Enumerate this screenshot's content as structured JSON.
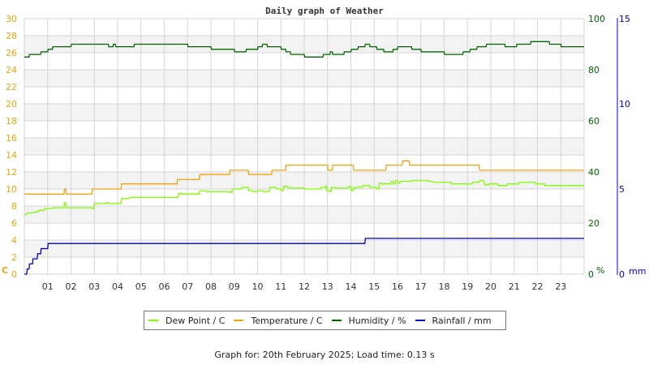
{
  "chart_data": {
    "type": "line",
    "title": "Daily graph of Weather",
    "xlabel": "",
    "x_ticks": [
      "01",
      "02",
      "03",
      "04",
      "05",
      "06",
      "07",
      "08",
      "09",
      "10",
      "11",
      "12",
      "13",
      "14",
      "15",
      "16",
      "17",
      "18",
      "19",
      "20",
      "21",
      "22",
      "23"
    ],
    "xlim": [
      0,
      24
    ],
    "grid": true,
    "legend_position": "bottom",
    "axes": {
      "left": {
        "label": "C",
        "ticks": [
          "0",
          "2",
          "4",
          "6",
          "8",
          "10",
          "12",
          "14",
          "16",
          "18",
          "20",
          "22",
          "24",
          "26",
          "28",
          "30"
        ],
        "range": [
          0,
          30
        ],
        "color": "#f0a30a"
      },
      "right_humidity": {
        "label": "%",
        "ticks": [
          "0",
          "20",
          "40",
          "60",
          "80",
          "100"
        ],
        "range": [
          0,
          100
        ],
        "color": "#006400"
      },
      "right_rain": {
        "label": "mm",
        "ticks": [
          "0",
          "5",
          "10",
          "15"
        ],
        "range": [
          0,
          15
        ],
        "color": "#0000cc"
      }
    },
    "series": [
      {
        "name": "Dew Point / C",
        "color": "#7fff00",
        "axis": "left",
        "points": [
          [
            0,
            7.0
          ],
          [
            0.1,
            7.0
          ],
          [
            0.12,
            7.2
          ],
          [
            0.4,
            7.2
          ],
          [
            0.42,
            7.3
          ],
          [
            0.6,
            7.3
          ],
          [
            0.62,
            7.5
          ],
          [
            0.85,
            7.5
          ],
          [
            0.87,
            7.7
          ],
          [
            1.2,
            7.7
          ],
          [
            1.22,
            7.8
          ],
          [
            1.7,
            7.8
          ],
          [
            1.72,
            8.4
          ],
          [
            1.78,
            8.4
          ],
          [
            1.8,
            7.8
          ],
          [
            2.9,
            7.8
          ],
          [
            2.92,
            7.7
          ],
          [
            2.98,
            7.7
          ],
          [
            3.0,
            8.3
          ],
          [
            3.5,
            8.3
          ],
          [
            3.52,
            8.4
          ],
          [
            3.6,
            8.4
          ],
          [
            3.62,
            8.3
          ],
          [
            4.15,
            8.3
          ],
          [
            4.17,
            8.9
          ],
          [
            4.5,
            8.9
          ],
          [
            4.52,
            9.0
          ],
          [
            6.6,
            9.0
          ],
          [
            6.62,
            9.5
          ],
          [
            6.75,
            9.5
          ],
          [
            6.77,
            9.4
          ],
          [
            7.5,
            9.4
          ],
          [
            7.52,
            9.8
          ],
          [
            7.8,
            9.8
          ],
          [
            7.82,
            9.7
          ],
          [
            8.8,
            9.7
          ],
          [
            8.82,
            9.6
          ],
          [
            8.9,
            9.6
          ],
          [
            8.92,
            10.0
          ],
          [
            9.3,
            10.0
          ],
          [
            9.32,
            10.2
          ],
          [
            9.6,
            10.2
          ],
          [
            9.62,
            9.8
          ],
          [
            9.8,
            9.8
          ],
          [
            9.82,
            9.7
          ],
          [
            10.0,
            9.7
          ],
          [
            10.02,
            9.8
          ],
          [
            10.2,
            9.8
          ],
          [
            10.22,
            9.7
          ],
          [
            10.5,
            9.7
          ],
          [
            10.52,
            10.2
          ],
          [
            10.8,
            10.2
          ],
          [
            10.82,
            10.0
          ],
          [
            11.0,
            10.0
          ],
          [
            11.02,
            9.8
          ],
          [
            11.1,
            9.8
          ],
          [
            11.12,
            10.3
          ],
          [
            11.3,
            10.3
          ],
          [
            11.32,
            10.1
          ],
          [
            12.0,
            10.1
          ],
          [
            12.02,
            10.0
          ],
          [
            12.7,
            10.0
          ],
          [
            12.72,
            10.2
          ],
          [
            12.9,
            10.2
          ],
          [
            12.92,
            10.3
          ],
          [
            12.95,
            10.3
          ],
          [
            12.97,
            9.8
          ],
          [
            13.1,
            9.8
          ],
          [
            13.12,
            9.7
          ],
          [
            13.15,
            9.7
          ],
          [
            13.17,
            10.2
          ],
          [
            13.3,
            10.2
          ],
          [
            13.32,
            10.1
          ],
          [
            13.9,
            10.1
          ],
          [
            13.92,
            10.3
          ],
          [
            14.0,
            10.3
          ],
          [
            14.02,
            9.8
          ],
          [
            14.1,
            9.8
          ],
          [
            14.12,
            10.1
          ],
          [
            14.2,
            10.1
          ],
          [
            14.22,
            10.2
          ],
          [
            14.5,
            10.2
          ],
          [
            14.52,
            10.4
          ],
          [
            14.8,
            10.4
          ],
          [
            14.82,
            10.2
          ],
          [
            15.1,
            10.2
          ],
          [
            15.12,
            10.0
          ],
          [
            15.2,
            10.0
          ],
          [
            15.22,
            10.7
          ],
          [
            15.3,
            10.7
          ],
          [
            15.32,
            10.6
          ],
          [
            15.7,
            10.6
          ],
          [
            15.72,
            10.9
          ],
          [
            15.8,
            10.9
          ],
          [
            15.82,
            10.6
          ],
          [
            15.9,
            10.6
          ],
          [
            15.92,
            11.0
          ],
          [
            16.0,
            11.0
          ],
          [
            16.02,
            10.7
          ],
          [
            16.1,
            10.7
          ],
          [
            16.12,
            10.9
          ],
          [
            16.6,
            10.9
          ],
          [
            16.62,
            11.0
          ],
          [
            17.3,
            11.0
          ],
          [
            17.32,
            10.9
          ],
          [
            17.5,
            10.9
          ],
          [
            17.52,
            10.8
          ],
          [
            18.3,
            10.8
          ],
          [
            18.32,
            10.6
          ],
          [
            19.2,
            10.6
          ],
          [
            19.22,
            10.8
          ],
          [
            19.5,
            10.8
          ],
          [
            19.52,
            11.0
          ],
          [
            19.7,
            11.0
          ],
          [
            19.72,
            10.5
          ],
          [
            19.9,
            10.5
          ],
          [
            19.92,
            10.6
          ],
          [
            20.3,
            10.6
          ],
          [
            20.32,
            10.4
          ],
          [
            20.7,
            10.4
          ],
          [
            20.72,
            10.6
          ],
          [
            21.2,
            10.6
          ],
          [
            21.22,
            10.8
          ],
          [
            21.9,
            10.8
          ],
          [
            21.92,
            10.6
          ],
          [
            22.3,
            10.6
          ],
          [
            22.32,
            10.4
          ],
          [
            24,
            10.4
          ]
        ]
      },
      {
        "name": "Temperature / C",
        "color": "#f0a30a",
        "axis": "left",
        "points": [
          [
            0,
            9.4
          ],
          [
            1.7,
            9.4
          ],
          [
            1.72,
            10.0
          ],
          [
            1.78,
            10.0
          ],
          [
            1.8,
            9.4
          ],
          [
            2.9,
            9.4
          ],
          [
            2.92,
            10.0
          ],
          [
            4.15,
            10.0
          ],
          [
            4.17,
            10.6
          ],
          [
            6.55,
            10.6
          ],
          [
            6.57,
            11.1
          ],
          [
            7.5,
            11.1
          ],
          [
            7.52,
            11.7
          ],
          [
            8.8,
            11.7
          ],
          [
            8.82,
            12.2
          ],
          [
            9.6,
            12.2
          ],
          [
            9.62,
            11.7
          ],
          [
            10.6,
            11.7
          ],
          [
            10.62,
            12.2
          ],
          [
            11.2,
            12.2
          ],
          [
            11.22,
            12.8
          ],
          [
            13.0,
            12.8
          ],
          [
            13.02,
            12.2
          ],
          [
            13.2,
            12.2
          ],
          [
            13.22,
            12.8
          ],
          [
            14.1,
            12.8
          ],
          [
            14.12,
            12.2
          ],
          [
            15.5,
            12.2
          ],
          [
            15.52,
            12.8
          ],
          [
            16.2,
            12.8
          ],
          [
            16.22,
            13.3
          ],
          [
            16.5,
            13.3
          ],
          [
            16.52,
            12.8
          ],
          [
            19.5,
            12.8
          ],
          [
            19.52,
            12.2
          ],
          [
            24,
            12.2
          ]
        ]
      },
      {
        "name": "Humidity / %",
        "color": "#006400",
        "axis": "right_humidity",
        "points": [
          [
            0,
            85
          ],
          [
            0.2,
            85
          ],
          [
            0.22,
            86
          ],
          [
            0.7,
            86
          ],
          [
            0.72,
            87
          ],
          [
            1.0,
            87
          ],
          [
            1.02,
            88
          ],
          [
            1.2,
            88
          ],
          [
            1.22,
            89
          ],
          [
            2.0,
            89
          ],
          [
            2.02,
            90
          ],
          [
            3.6,
            90
          ],
          [
            3.62,
            89
          ],
          [
            3.8,
            89
          ],
          [
            3.82,
            90
          ],
          [
            3.9,
            90
          ],
          [
            3.92,
            89
          ],
          [
            4.7,
            89
          ],
          [
            4.72,
            90
          ],
          [
            7.0,
            90
          ],
          [
            7.02,
            89
          ],
          [
            8.0,
            89
          ],
          [
            8.02,
            88
          ],
          [
            9.0,
            88
          ],
          [
            9.02,
            87
          ],
          [
            9.5,
            87
          ],
          [
            9.52,
            88
          ],
          [
            10.0,
            88
          ],
          [
            10.02,
            89
          ],
          [
            10.2,
            89
          ],
          [
            10.22,
            90
          ],
          [
            10.4,
            90
          ],
          [
            10.42,
            89
          ],
          [
            11.0,
            89
          ],
          [
            11.02,
            88
          ],
          [
            11.2,
            88
          ],
          [
            11.22,
            87
          ],
          [
            11.4,
            87
          ],
          [
            11.42,
            86
          ],
          [
            12.0,
            86
          ],
          [
            12.02,
            85
          ],
          [
            12.8,
            85
          ],
          [
            12.82,
            86
          ],
          [
            13.1,
            86
          ],
          [
            13.12,
            87
          ],
          [
            13.2,
            87
          ],
          [
            13.22,
            86
          ],
          [
            13.7,
            86
          ],
          [
            13.72,
            87
          ],
          [
            14.0,
            87
          ],
          [
            14.02,
            88
          ],
          [
            14.3,
            88
          ],
          [
            14.32,
            89
          ],
          [
            14.6,
            89
          ],
          [
            14.62,
            90
          ],
          [
            14.8,
            90
          ],
          [
            14.82,
            89
          ],
          [
            15.1,
            89
          ],
          [
            15.12,
            88
          ],
          [
            15.4,
            88
          ],
          [
            15.42,
            87
          ],
          [
            15.8,
            87
          ],
          [
            15.82,
            88
          ],
          [
            16.0,
            88
          ],
          [
            16.02,
            89
          ],
          [
            16.6,
            89
          ],
          [
            16.62,
            88
          ],
          [
            17.0,
            88
          ],
          [
            17.02,
            87
          ],
          [
            18.0,
            87
          ],
          [
            18.02,
            86
          ],
          [
            18.8,
            86
          ],
          [
            18.82,
            87
          ],
          [
            19.1,
            87
          ],
          [
            19.12,
            88
          ],
          [
            19.4,
            88
          ],
          [
            19.42,
            89
          ],
          [
            19.8,
            89
          ],
          [
            19.82,
            90
          ],
          [
            20.6,
            90
          ],
          [
            20.62,
            89
          ],
          [
            21.1,
            89
          ],
          [
            21.12,
            90
          ],
          [
            21.7,
            90
          ],
          [
            21.72,
            91
          ],
          [
            22.5,
            91
          ],
          [
            22.52,
            90
          ],
          [
            23.0,
            90
          ],
          [
            23.02,
            89
          ],
          [
            24,
            89
          ]
        ]
      },
      {
        "name": "Rainfall / mm",
        "color": "#0000cc",
        "axis": "right_rain",
        "points": [
          [
            0,
            0
          ],
          [
            0.1,
            0
          ],
          [
            0.12,
            0.3
          ],
          [
            0.2,
            0.3
          ],
          [
            0.22,
            0.6
          ],
          [
            0.35,
            0.6
          ],
          [
            0.37,
            0.9
          ],
          [
            0.55,
            0.9
          ],
          [
            0.57,
            1.2
          ],
          [
            0.7,
            1.2
          ],
          [
            0.72,
            1.5
          ],
          [
            1.0,
            1.5
          ],
          [
            1.02,
            1.8
          ],
          [
            14.6,
            1.8
          ],
          [
            14.62,
            2.1
          ],
          [
            24,
            2.1
          ]
        ]
      }
    ]
  },
  "legend": {
    "items": [
      {
        "label": "Dew Point / C",
        "color": "#7fff00"
      },
      {
        "label": "Temperature / C",
        "color": "#f0a30a"
      },
      {
        "label": "Humidity / %",
        "color": "#006400"
      },
      {
        "label": "Rainfall / mm",
        "color": "#0000cc"
      }
    ]
  },
  "footer": {
    "text": "Graph for: 20th February 2025; Load time: 0.13 s"
  }
}
